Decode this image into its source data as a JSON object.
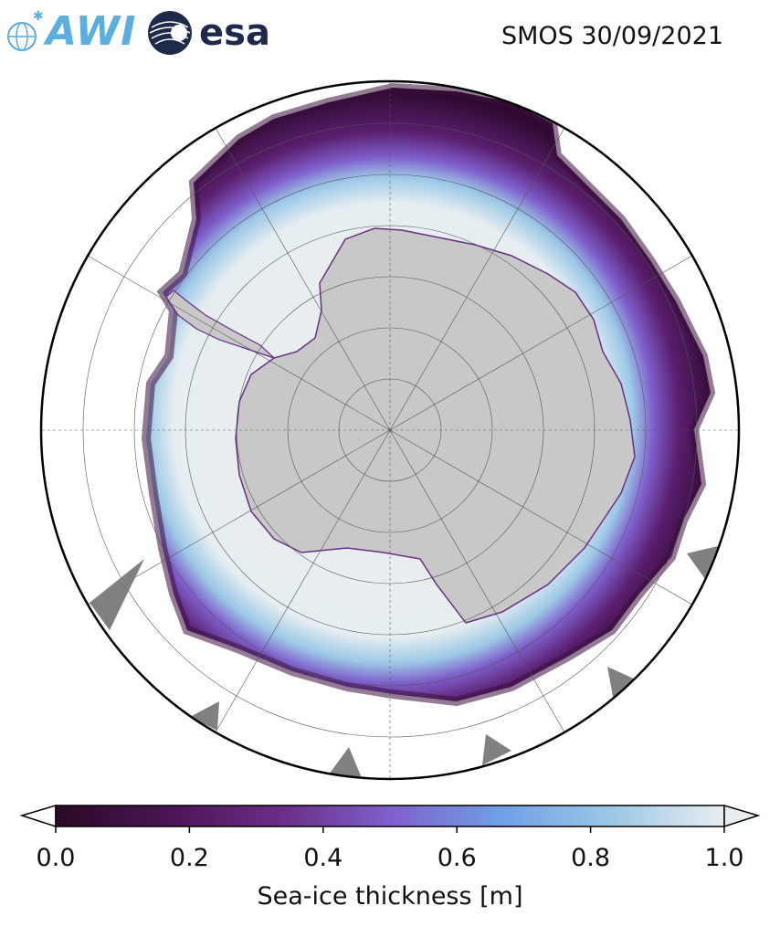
{
  "header": {
    "logo_awi": "AWI",
    "logo_esa": "esa",
    "title": "SMOS 30/09/2021"
  },
  "map": {
    "projection": "south-polar-stereographic",
    "land_color": "#c8c8c8",
    "open_water_color": "#ffffff",
    "no_data_color": "#808080",
    "coastline_visible": true,
    "graticule_visible": true
  },
  "colorbar": {
    "label": "Sea-ice thickness [m]",
    "min": 0.0,
    "max": 1.0,
    "extend": "both",
    "ticks": [
      "0.0",
      "0.2",
      "0.4",
      "0.6",
      "0.8",
      "1.0"
    ],
    "tick_values": [
      0.0,
      0.2,
      0.4,
      0.6,
      0.8,
      1.0
    ],
    "colormap": [
      "#2a0a26",
      "#4a1454",
      "#6a2d86",
      "#7f5fcc",
      "#6fa0e6",
      "#9cc8e6",
      "#e8eef0"
    ]
  }
}
